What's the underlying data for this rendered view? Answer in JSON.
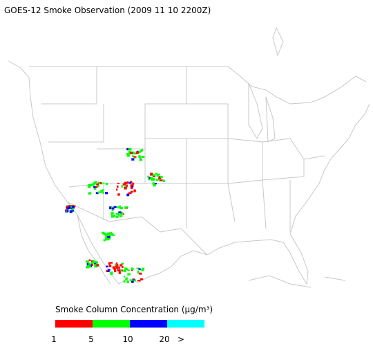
{
  "header": {
    "title": "GOES-12 Smoke Observation (2009 11 10  2200Z)"
  },
  "legend": {
    "title": "Smoke Column Concentration (μg/m³)",
    "colors": [
      "#ff0000",
      "#00ff00",
      "#0000ff",
      "#00ffff"
    ],
    "labels": [
      "1",
      "5",
      "10",
      "20",
      ">"
    ]
  }
}
